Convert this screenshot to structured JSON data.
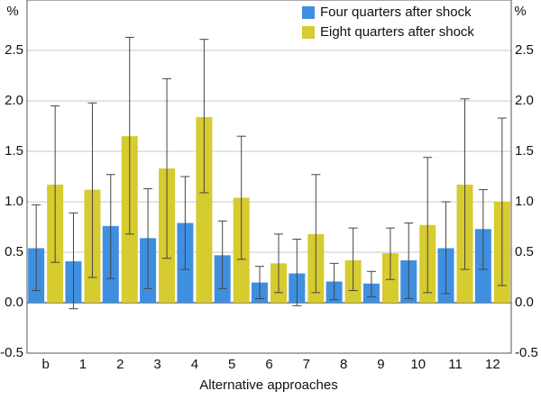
{
  "chart_data": {
    "type": "bar",
    "y_unit": "%",
    "x_label": "Alternative approaches",
    "categories": [
      "b",
      "1",
      "2",
      "3",
      "4",
      "5",
      "6",
      "7",
      "8",
      "9",
      "10",
      "11",
      "12"
    ],
    "series": [
      {
        "name": "Four quarters after shock",
        "color": "#3f8fe0",
        "values": [
          0.54,
          0.41,
          0.76,
          0.64,
          0.79,
          0.47,
          0.2,
          0.29,
          0.21,
          0.19,
          0.42,
          0.54,
          0.73
        ],
        "error_low": [
          0.12,
          -0.06,
          0.24,
          0.14,
          0.33,
          0.14,
          0.04,
          -0.03,
          0.03,
          0.06,
          0.04,
          0.09,
          0.33
        ],
        "error_high": [
          0.97,
          0.89,
          1.27,
          1.13,
          1.25,
          0.81,
          0.36,
          0.63,
          0.39,
          0.31,
          0.79,
          1.0,
          1.12
        ]
      },
      {
        "name": "Eight quarters after shock",
        "color": "#d6cb2f",
        "values": [
          1.17,
          1.12,
          1.65,
          1.33,
          1.84,
          1.04,
          0.39,
          0.68,
          0.42,
          0.49,
          0.77,
          1.17,
          1.0
        ],
        "error_low": [
          0.4,
          0.25,
          0.68,
          0.44,
          1.09,
          0.43,
          0.1,
          0.1,
          0.12,
          0.23,
          0.1,
          0.33,
          0.17
        ],
        "error_high": [
          1.95,
          1.98,
          2.63,
          2.22,
          2.61,
          1.65,
          0.68,
          1.27,
          0.74,
          0.74,
          1.44,
          2.02,
          1.83
        ]
      }
    ],
    "ylim": [
      -0.5,
      3.0
    ],
    "yticks": [
      -0.5,
      {
        "value": 0,
        "label": "0.0"
      },
      0.5,
      {
        "value": 1,
        "label": "1.0"
      },
      1.5,
      {
        "value": 2,
        "label": "2.0"
      },
      2.5
    ],
    "grid": true,
    "legend": "top-right"
  }
}
